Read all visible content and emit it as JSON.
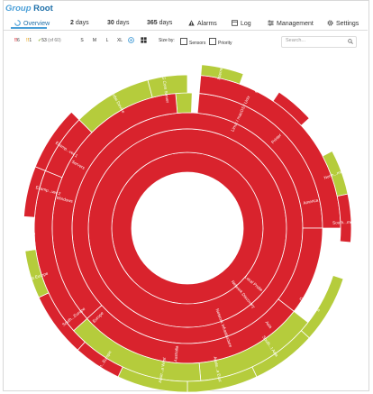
{
  "header": {
    "group_label": "Group",
    "root_label": "Root"
  },
  "tabs": [
    {
      "label": "Overview"
    },
    {
      "num": "2",
      "label": "days"
    },
    {
      "num": "30",
      "label": "days"
    },
    {
      "num": "365",
      "label": "days"
    },
    {
      "label": "Alarms"
    },
    {
      "label": "Log"
    },
    {
      "label": "Management"
    },
    {
      "label": "Settings"
    }
  ],
  "status": {
    "red": "6",
    "yellow": "1",
    "green": "53",
    "of_total": "(of 60)"
  },
  "sizes": [
    "S",
    "M",
    "L",
    "XL"
  ],
  "size_by": {
    "label": "Size by:",
    "sensors": "Sensors",
    "priority": "Priority"
  },
  "search": {
    "placeholder": "Search..."
  },
  "colors": {
    "down": "#d9232d",
    "up": "#b5cc3c",
    "neutral": "#ffffff",
    "accent": "#4a9fd8"
  },
  "chart_data": {
    "type": "sunburst",
    "labels": [
      "Examp...ver 1",
      "Examp...ver 2",
      "Servers",
      "Windows",
      "Clients",
      "Probe Device",
      "PRTG Core Server",
      "Internet",
      "Linux / macOS / Unix",
      "Monitor",
      "Printer",
      "North...merica",
      "America",
      "South...merica",
      "Centr... India",
      "Asia",
      "South...t Asia",
      "Auste...a East",
      "Austr...a West",
      "Australia",
      "Network Infrastructure",
      "North...Europe",
      "Europe",
      "South...Europe",
      "West Europe",
      "Local Probe",
      "Network Discovery"
    ]
  }
}
